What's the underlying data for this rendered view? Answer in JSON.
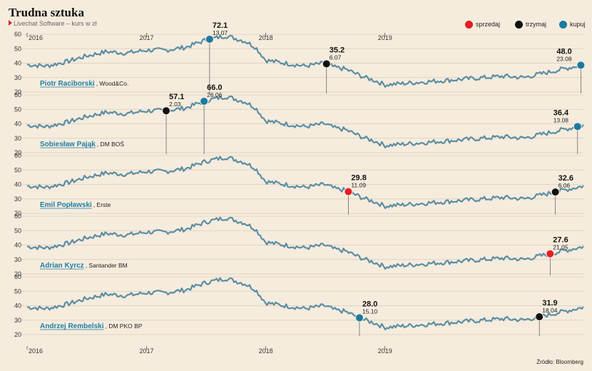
{
  "header": {
    "title": "Trudna sztuka",
    "subtitle": "Livechat Software – kurs w zł",
    "source": "Źródło: Bloomberg"
  },
  "legend": [
    {
      "label": "sprzedaj",
      "color": "#e31e24"
    },
    {
      "label": "trzymaj",
      "color": "#111111"
    },
    {
      "label": "kupuj",
      "color": "#1b7aa2"
    }
  ],
  "chart_data": {
    "type": "line",
    "xlim": [
      "2016-01-01",
      "2020-08-31"
    ],
    "ylim": [
      20,
      62
    ],
    "yticks": [
      20,
      30,
      40,
      50,
      60
    ],
    "year_labels": [
      "2016",
      "2017",
      "2018",
      "2019"
    ],
    "line_color": "#5b8da4",
    "series": {
      "dates": [
        "2016-01-01",
        "2016-03-01",
        "2016-05-01",
        "2016-07-01",
        "2016-09-01",
        "2016-11-01",
        "2017-01-01",
        "2017-03-01",
        "2017-05-01",
        "2017-07-01",
        "2017-09-01",
        "2017-11-01",
        "2017-12-01",
        "2018-01-01",
        "2018-03-01",
        "2018-05-01",
        "2018-07-01",
        "2018-08-01",
        "2018-09-01",
        "2018-10-01",
        "2018-11-01",
        "2018-12-01",
        "2019-01-01",
        "2019-03-01",
        "2019-05-01",
        "2019-07-01",
        "2019-09-01",
        "2019-11-01",
        "2020-01-01",
        "2020-03-01",
        "2020-05-01",
        "2020-07-01",
        "2020-08-31"
      ],
      "values": [
        39,
        38,
        41,
        45,
        48,
        47,
        49,
        49,
        51,
        56,
        59,
        55,
        51,
        42,
        40,
        38,
        40,
        37,
        36,
        33,
        30,
        28,
        25,
        26,
        27,
        28,
        29,
        30,
        31,
        30,
        33,
        36,
        39
      ]
    },
    "panels": [
      {
        "analyst": "Piotr Raciborski",
        "firm": "Wood&Co.",
        "recommendations": [
          {
            "date": "2017-07-13",
            "date_label": "13.07",
            "price": "72.1",
            "type": "kupuj"
          },
          {
            "date": "2018-07-06",
            "date_label": "6.07",
            "price": "35.2",
            "type": "trzymaj"
          },
          {
            "date": "2020-08-23",
            "date_label": "23.08",
            "price": "48.0",
            "type": "kupuj"
          }
        ]
      },
      {
        "analyst": "Sobiesław Pająk",
        "firm": "DM BOŚ",
        "recommendations": [
          {
            "date": "2017-03-02",
            "date_label": "2.03",
            "price": "57.1",
            "type": "trzymaj"
          },
          {
            "date": "2017-06-26",
            "date_label": "26.06",
            "price": "66.0",
            "type": "kupuj"
          },
          {
            "date": "2020-08-13",
            "date_label": "13.08",
            "price": "36.4",
            "type": "kupuj"
          }
        ]
      },
      {
        "analyst": "Emil Popławski",
        "firm": "Erste",
        "recommendations": [
          {
            "date": "2018-09-11",
            "date_label": "11.09",
            "price": "29.8",
            "type": "sprzedaj"
          },
          {
            "date": "2020-06-06",
            "date_label": "6.06",
            "price": "32.6",
            "type": "trzymaj"
          }
        ]
      },
      {
        "analyst": "Adrian Kyrcz",
        "firm": "Santander BM",
        "recommendations": [
          {
            "date": "2020-05-21",
            "date_label": "21.05",
            "price": "27.6",
            "type": "sprzedaj"
          }
        ]
      },
      {
        "analyst": "Andrzej Rembelski",
        "firm": "DM PKO BP",
        "recommendations": [
          {
            "date": "2018-10-15",
            "date_label": "15.10",
            "price": "28.0",
            "type": "kupuj"
          },
          {
            "date": "2020-04-18",
            "date_label": "18.04",
            "price": "31.9",
            "type": "trzymaj"
          }
        ]
      }
    ]
  }
}
